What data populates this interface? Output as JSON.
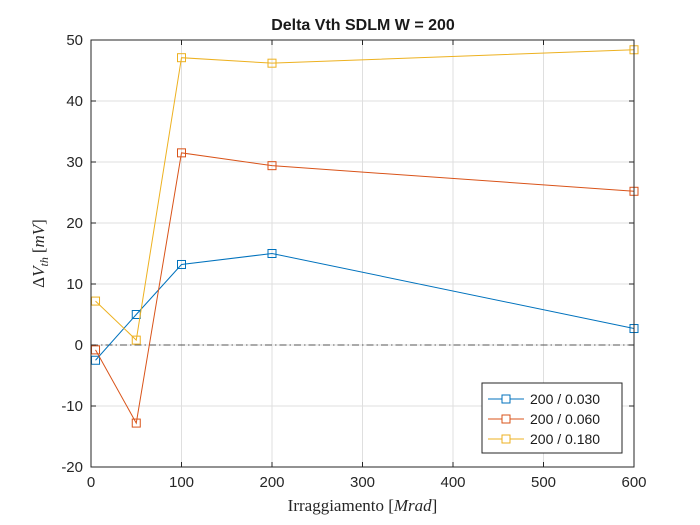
{
  "chart_data": {
    "type": "line",
    "title": "Delta Vth SDLM W = 200",
    "xlabel": "Irraggiamento [Mrad]",
    "ylabel": "ΔV_th [mV]",
    "xlim": [
      0,
      600
    ],
    "ylim": [
      -20,
      50
    ],
    "xticks": [
      0,
      100,
      200,
      300,
      400,
      500,
      600
    ],
    "yticks": [
      -20,
      -10,
      0,
      10,
      20,
      30,
      40,
      50
    ],
    "grid": true,
    "legend_position": "bottom-right",
    "zero_reference_line": true,
    "x": [
      5,
      50,
      100,
      200,
      600
    ],
    "series": [
      {
        "name": "200 / 0.030",
        "color": "#0072BD",
        "values": [
          -2.5,
          5,
          13.2,
          15,
          2.7
        ]
      },
      {
        "name": "200 / 0.060",
        "color": "#D95319",
        "values": [
          -0.8,
          -12.8,
          31.5,
          29.4,
          25.2
        ]
      },
      {
        "name": "200 / 0.180",
        "color": "#EDB120",
        "values": [
          7.2,
          0.8,
          47.1,
          46.2,
          48.4
        ]
      }
    ]
  }
}
